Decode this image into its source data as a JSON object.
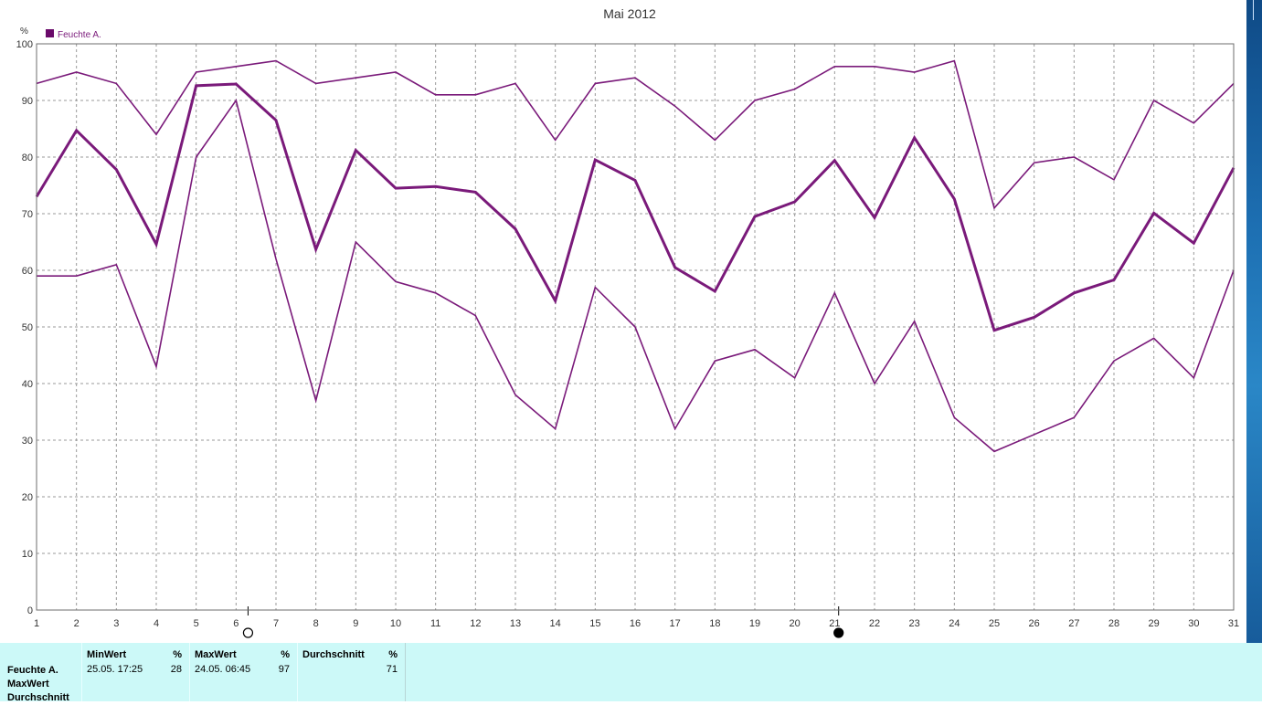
{
  "chart_data": {
    "type": "line",
    "title": "Mai 2012",
    "ylabel": "%",
    "ylim": [
      0,
      100
    ],
    "y_ticks": [
      0,
      10,
      20,
      30,
      40,
      50,
      60,
      70,
      80,
      90,
      100
    ],
    "x": [
      1,
      2,
      3,
      4,
      5,
      6,
      7,
      8,
      9,
      10,
      11,
      12,
      13,
      14,
      15,
      16,
      17,
      18,
      19,
      20,
      21,
      22,
      23,
      24,
      25,
      26,
      27,
      28,
      29,
      30,
      31
    ],
    "legend": {
      "label": "Feuchte A.",
      "placement": "top-left"
    },
    "grid": true,
    "series": [
      {
        "role": "max",
        "values": [
          93,
          95,
          93,
          84,
          95,
          96,
          97,
          93,
          94,
          95,
          91,
          91,
          93,
          83,
          93,
          94,
          89,
          83,
          90,
          92,
          96,
          96,
          95,
          97,
          71,
          79,
          80,
          76,
          90,
          86,
          93
        ]
      },
      {
        "role": "mean",
        "values": [
          73,
          84.7,
          77.8,
          64.6,
          92.6,
          92.9,
          86.5,
          63.7,
          81.2,
          74.5,
          74.8,
          73.8,
          67.3,
          54.6,
          79.5,
          75.9,
          60.5,
          56.3,
          69.5,
          72.1,
          79.4,
          69.3,
          83.4,
          72.6,
          49.4,
          51.7,
          56,
          58.3,
          70.1,
          64.8,
          78.1
        ]
      },
      {
        "role": "min",
        "values": [
          59,
          59,
          61,
          43,
          80,
          90,
          62,
          37,
          65,
          58,
          56,
          52,
          38,
          32,
          57,
          50,
          32,
          44,
          46,
          41,
          56,
          40,
          51,
          34,
          28,
          31,
          34,
          44,
          48,
          41,
          60
        ]
      }
    ],
    "moon_markers": [
      {
        "day": 6.3,
        "phase": "full-moon"
      },
      {
        "day": 21.1,
        "phase": "new-moon"
      }
    ],
    "colors": {
      "line": "#7a1a7a",
      "grid": "#999999",
      "panel": "#ccf9f8"
    }
  },
  "stats": {
    "row_labels": [
      "Feuchte A.",
      "MaxWert",
      "Durchschnitt"
    ],
    "columns": [
      {
        "header": "MinWert",
        "unit": "%",
        "date": "25.05.  17:25",
        "value": "28"
      },
      {
        "header": "MaxWert",
        "unit": "%",
        "date": "24.05.  06:45",
        "value": "97"
      },
      {
        "header": "Durchschnitt",
        "unit": "%",
        "date": "",
        "value": "71"
      }
    ]
  }
}
